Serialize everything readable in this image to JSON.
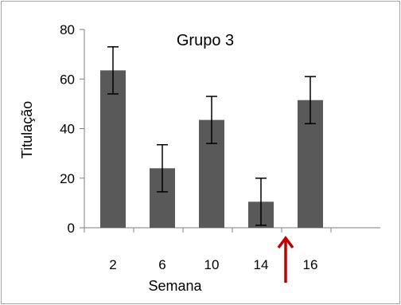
{
  "chart_data": {
    "type": "bar",
    "title": "Grupo 3",
    "xlabel": "Semana",
    "ylabel": "Titulação",
    "categories": [
      "2",
      "6",
      "10",
      "14",
      "16"
    ],
    "values": [
      63.5,
      24,
      43.5,
      10.5,
      51.5
    ],
    "error": [
      9.5,
      9.5,
      9.5,
      9.5,
      9.5
    ],
    "ylim": [
      0,
      80
    ],
    "yticks": [
      "0",
      "20",
      "40",
      "60",
      "80"
    ],
    "ytick_values": [
      0,
      20,
      40,
      60,
      80
    ],
    "grid": false,
    "legend": "none",
    "bar_color": "#595959",
    "annotation": {
      "type": "arrow",
      "at": "between 14 and 16",
      "color": "#c00000"
    }
  }
}
